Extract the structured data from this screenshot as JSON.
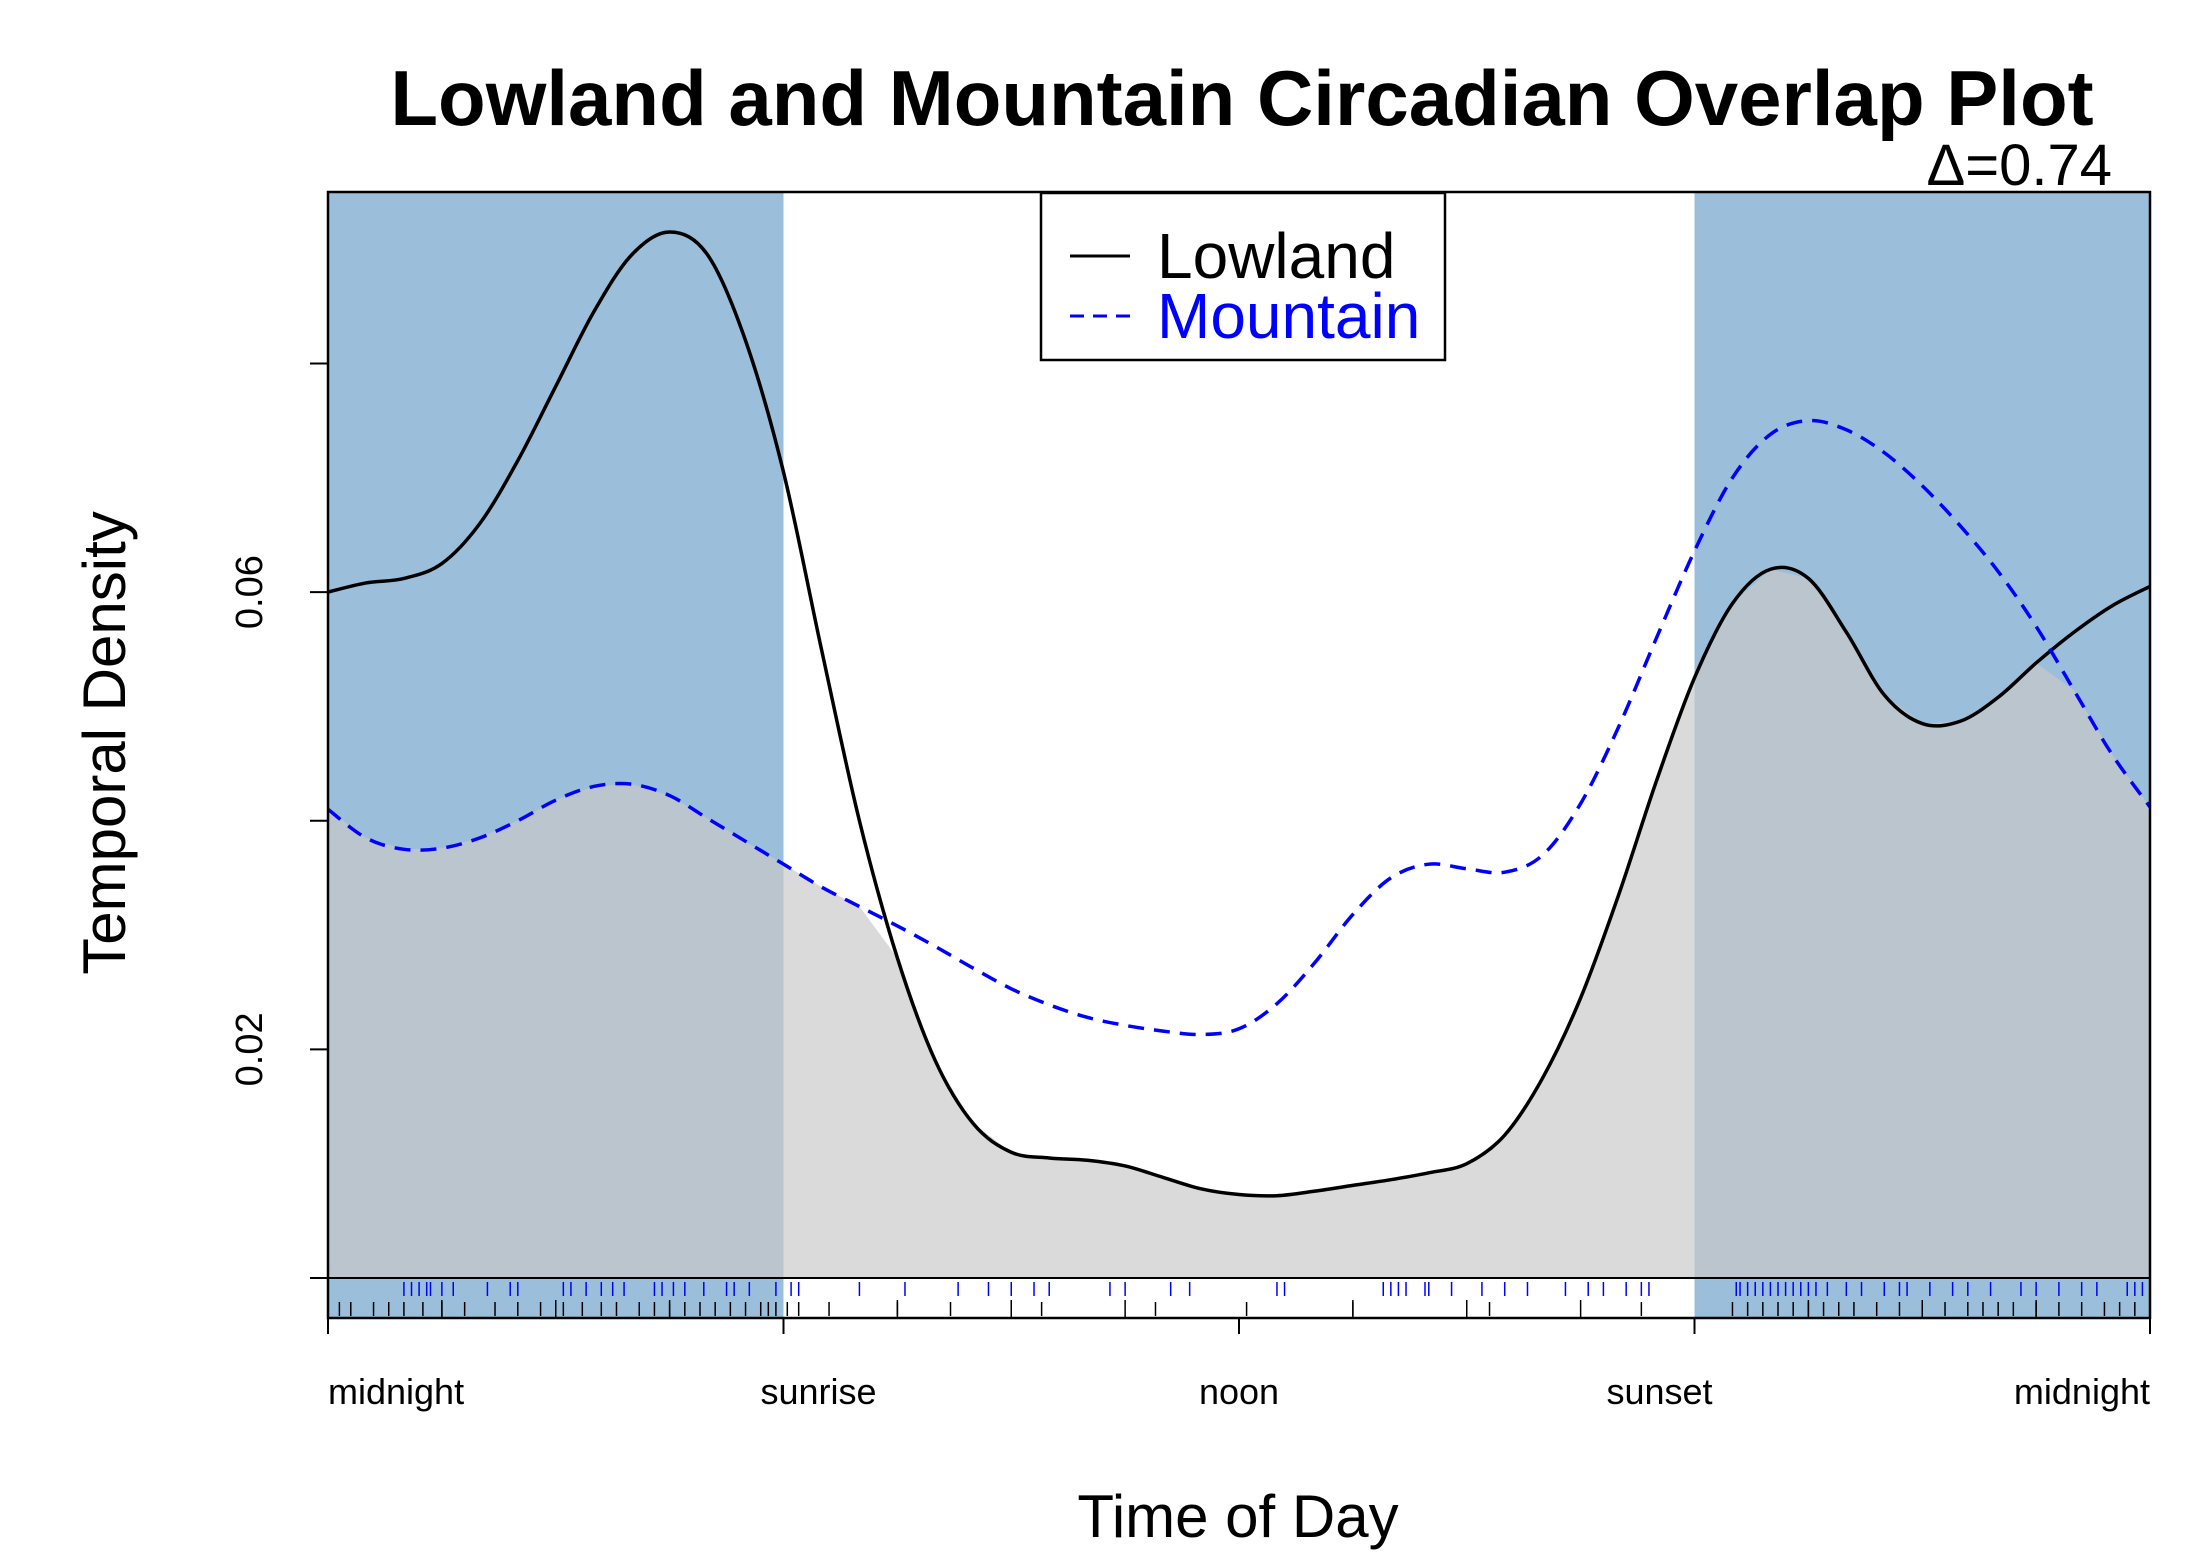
{
  "chart_data": {
    "type": "line",
    "title": "Lowland and Mountain Circadian Overlap Plot",
    "subtitle": "Δ=0.74",
    "xlabel": "Time of Day",
    "ylabel": "Temporal Density",
    "xlim": [
      0,
      24
    ],
    "ylim": [
      0,
      0.095
    ],
    "x_ticks": [
      {
        "value": 0,
        "label": "midnight"
      },
      {
        "value": 6,
        "label": "sunrise"
      },
      {
        "value": 12,
        "label": "noon"
      },
      {
        "value": 18,
        "label": "sunset"
      },
      {
        "value": 24,
        "label": "midnight"
      }
    ],
    "y_ticks": [
      {
        "value": 0.02,
        "label": "0.02"
      },
      {
        "value": 0.06,
        "label": "0.06"
      }
    ],
    "night_shading": {
      "color": "#9bbfda",
      "intervals": [
        [
          0,
          6
        ],
        [
          18,
          24
        ]
      ]
    },
    "overlap_fill_color": "#c8c8c8",
    "legend": {
      "position": "top-center"
    },
    "series": [
      {
        "name": "Lowland",
        "color": "#000000",
        "dash": "solid",
        "x": [
          0,
          0.5,
          1,
          1.5,
          2,
          2.5,
          3,
          3.5,
          4,
          4.5,
          5,
          5.5,
          6,
          6.5,
          7,
          7.5,
          8,
          8.5,
          9,
          9.5,
          10,
          10.5,
          11,
          11.5,
          12,
          12.5,
          13,
          13.5,
          14,
          14.5,
          15,
          15.5,
          16,
          16.5,
          17,
          17.5,
          18,
          18.5,
          19,
          19.5,
          20,
          20.5,
          21,
          21.5,
          22,
          22.5,
          23,
          23.5,
          24
        ],
        "y": [
          0.06,
          0.0608,
          0.0612,
          0.0625,
          0.066,
          0.0715,
          0.078,
          0.0845,
          0.0895,
          0.0915,
          0.0895,
          0.082,
          0.0705,
          0.055,
          0.04,
          0.028,
          0.019,
          0.0135,
          0.011,
          0.0105,
          0.0103,
          0.0098,
          0.0088,
          0.0078,
          0.0073,
          0.0072,
          0.0076,
          0.0081,
          0.0086,
          0.0092,
          0.01,
          0.0125,
          0.0175,
          0.0245,
          0.0335,
          0.0435,
          0.0525,
          0.059,
          0.062,
          0.0612,
          0.0565,
          0.051,
          0.0485,
          0.0487,
          0.0508,
          0.0538,
          0.0565,
          0.0588,
          0.0605
        ]
      },
      {
        "name": "Mountain",
        "color": "#0000ff",
        "dash": "dashed",
        "x": [
          0,
          0.5,
          1,
          1.5,
          2,
          2.5,
          3,
          3.5,
          4,
          4.5,
          5,
          5.5,
          6,
          6.5,
          7,
          7.5,
          8,
          8.5,
          9,
          9.5,
          10,
          10.5,
          11,
          11.5,
          12,
          12.5,
          13,
          13.5,
          14,
          14.5,
          15,
          15.5,
          16,
          16.5,
          17,
          17.5,
          18,
          18.5,
          19,
          19.5,
          20,
          20.5,
          21,
          21.5,
          22,
          22.5,
          23,
          23.5,
          24
        ],
        "y": [
          0.041,
          0.0385,
          0.0375,
          0.0376,
          0.0385,
          0.04,
          0.0418,
          0.043,
          0.0432,
          0.0422,
          0.0402,
          0.0382,
          0.0362,
          0.0342,
          0.0325,
          0.0308,
          0.029,
          0.0271,
          0.0253,
          0.0239,
          0.0228,
          0.0221,
          0.0216,
          0.0213,
          0.0218,
          0.024,
          0.0276,
          0.0318,
          0.035,
          0.0362,
          0.0358,
          0.0355,
          0.037,
          0.0415,
          0.0482,
          0.056,
          0.0636,
          0.07,
          0.0738,
          0.075,
          0.0742,
          0.0722,
          0.0693,
          0.0658,
          0.0618,
          0.057,
          0.0514,
          0.0458,
          0.0412
        ]
      }
    ],
    "rugs": [
      {
        "series": "Mountain",
        "color": "#0000ff",
        "position": "upper",
        "x": [
          1.0,
          1.1,
          1.2,
          1.3,
          1.35,
          1.5,
          1.65,
          2.1,
          2.4,
          2.5,
          3.1,
          3.2,
          3.4,
          3.6,
          3.75,
          3.9,
          4.3,
          4.4,
          4.55,
          4.7,
          4.95,
          5.25,
          5.35,
          5.55,
          5.9,
          6.1,
          6.2,
          7.0,
          7.6,
          8.3,
          8.7,
          9.0,
          9.3,
          9.5,
          10.3,
          10.5,
          11.1,
          11.35,
          12.5,
          12.6,
          13.9,
          14.0,
          14.1,
          14.2,
          14.45,
          14.5,
          14.8,
          15.2,
          15.5,
          15.8,
          16.3,
          16.6,
          16.8,
          17.1,
          17.3,
          17.4,
          18.55,
          18.6,
          18.7,
          18.8,
          18.9,
          19.0,
          19.1,
          19.2,
          19.3,
          19.4,
          19.5,
          19.6,
          19.75,
          20.0,
          20.2,
          20.5,
          20.7,
          20.8,
          21.1,
          21.4,
          21.6,
          21.9,
          22.3,
          22.5,
          22.8,
          23.1,
          23.3,
          23.7,
          23.8,
          23.9
        ]
      },
      {
        "series": "Lowland",
        "color": "#000000",
        "position": "lower",
        "x": [
          0.15,
          0.3,
          0.6,
          0.8,
          1.0,
          1.25,
          1.5,
          1.8,
          2.2,
          2.5,
          2.8,
          3.1,
          3.35,
          3.6,
          3.8,
          4.1,
          4.3,
          4.5,
          4.7,
          4.9,
          5.1,
          5.3,
          5.5,
          5.7,
          5.8,
          5.9,
          6.05,
          6.2,
          6.6,
          7.5,
          8.2,
          9.4,
          10.9,
          12.1,
          13.5,
          15.3,
          17.3,
          18.5,
          18.7,
          18.9,
          19.1,
          19.3,
          19.5,
          19.7,
          19.9,
          20.1,
          20.4,
          20.7,
          21.0,
          21.3,
          21.6,
          21.8,
          22.0,
          22.2,
          22.5,
          22.8,
          23.1,
          23.4,
          23.6,
          23.8
        ]
      }
    ]
  }
}
